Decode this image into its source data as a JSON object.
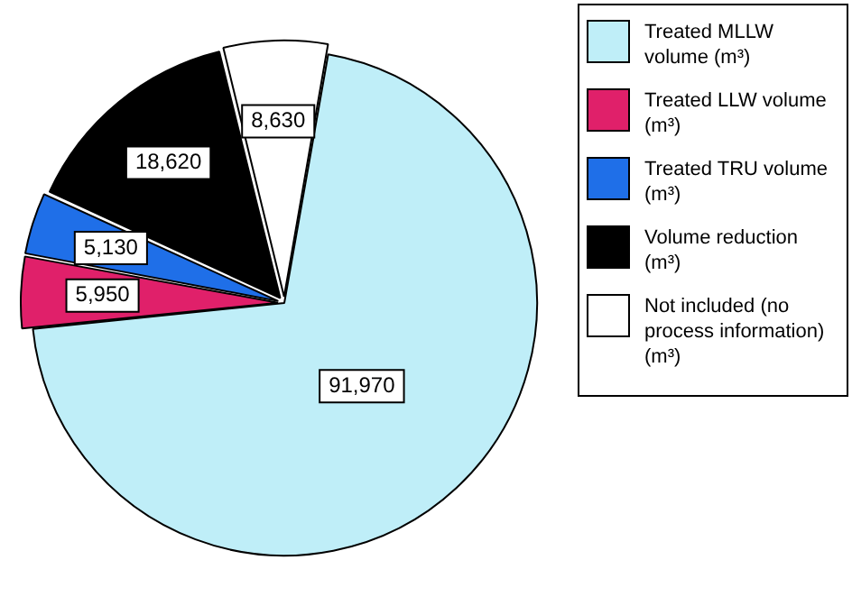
{
  "chart_data": {
    "type": "pie",
    "categories": [
      "Treated MLLW volume (m³)",
      "Treated LLW volume (m³)",
      "Treated TRU volume (m³)",
      "Volume reduction (m³)",
      "Not included (no process information) (m³)"
    ],
    "values": [
      91970,
      5950,
      5130,
      18620,
      8630
    ],
    "value_labels": [
      "91,970",
      "5,950",
      "5,130",
      "18,620",
      "8,630"
    ],
    "colors": [
      "#bfeef8",
      "#e0206a",
      "#1f6fe8",
      "#000000",
      "#ffffff"
    ],
    "legend": "right"
  }
}
